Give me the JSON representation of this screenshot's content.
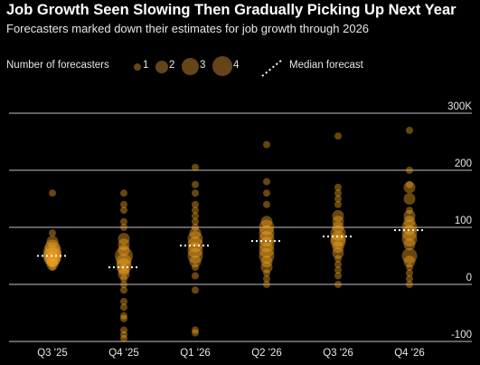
{
  "title": "Job Growth Seen Slowing Then Gradually Picking Up Next Year",
  "subtitle": "Forecasters marked down their estimates for job growth through 2026",
  "legend": {
    "forecasters_label": "Number of forecasters",
    "sizes": [
      "1",
      "2",
      "3",
      "4"
    ],
    "median_label": "Median forecast"
  },
  "colors": {
    "bubble": "#f5a623",
    "median": "#ffffff",
    "grid": "#ffffff",
    "background": "#000000"
  },
  "chart_data": {
    "type": "scatter",
    "title": "Job Growth Seen Slowing Then Gradually Picking Up Next Year",
    "categories": [
      "Q3 '25",
      "Q4 '25",
      "Q1 '26",
      "Q2 '26",
      "Q3 '26",
      "Q4 '26"
    ],
    "y_ticks": [
      {
        "value": 300,
        "label": "300K"
      },
      {
        "value": 200,
        "label": "200"
      },
      {
        "value": 100,
        "label": "100"
      },
      {
        "value": 0,
        "label": "0"
      },
      {
        "value": -100,
        "label": "-100"
      }
    ],
    "ylim": [
      -100,
      300
    ],
    "medians": [
      50,
      30,
      68,
      76,
      84,
      95
    ],
    "points": [
      [
        [
          160,
          1
        ],
        [
          90,
          1
        ],
        [
          75,
          2
        ],
        [
          65,
          3
        ],
        [
          58,
          4
        ],
        [
          52,
          4
        ],
        [
          48,
          4
        ],
        [
          44,
          3
        ],
        [
          40,
          2
        ],
        [
          35,
          2
        ],
        [
          30,
          1
        ]
      ],
      [
        [
          160,
          1
        ],
        [
          140,
          1
        ],
        [
          130,
          1
        ],
        [
          110,
          1
        ],
        [
          100,
          1
        ],
        [
          80,
          2
        ],
        [
          70,
          2
        ],
        [
          60,
          2
        ],
        [
          50,
          4
        ],
        [
          40,
          3
        ],
        [
          32,
          3
        ],
        [
          25,
          2
        ],
        [
          18,
          2
        ],
        [
          10,
          1
        ],
        [
          0,
          1
        ],
        [
          -10,
          1
        ],
        [
          -30,
          1
        ],
        [
          -40,
          1
        ],
        [
          -55,
          1
        ],
        [
          -60,
          1
        ],
        [
          -80,
          1
        ],
        [
          -88,
          1
        ],
        [
          -95,
          1
        ]
      ],
      [
        [
          205,
          1
        ],
        [
          175,
          1
        ],
        [
          160,
          1
        ],
        [
          140,
          1
        ],
        [
          130,
          1
        ],
        [
          120,
          1
        ],
        [
          110,
          1
        ],
        [
          100,
          1
        ],
        [
          90,
          2
        ],
        [
          80,
          3
        ],
        [
          70,
          3
        ],
        [
          60,
          3
        ],
        [
          50,
          3
        ],
        [
          40,
          2
        ],
        [
          30,
          1
        ],
        [
          15,
          1
        ],
        [
          -10,
          1
        ],
        [
          -80,
          1
        ],
        [
          -85,
          1
        ]
      ],
      [
        [
          245,
          1
        ],
        [
          180,
          1
        ],
        [
          160,
          1
        ],
        [
          140,
          1
        ],
        [
          110,
          2
        ],
        [
          100,
          3
        ],
        [
          90,
          3
        ],
        [
          80,
          3
        ],
        [
          70,
          3
        ],
        [
          60,
          3
        ],
        [
          50,
          3
        ],
        [
          40,
          2
        ],
        [
          30,
          2
        ],
        [
          20,
          1
        ],
        [
          10,
          1
        ],
        [
          0,
          1
        ]
      ],
      [
        [
          260,
          1
        ],
        [
          170,
          1
        ],
        [
          160,
          1
        ],
        [
          150,
          1
        ],
        [
          140,
          1
        ],
        [
          120,
          2
        ],
        [
          110,
          2
        ],
        [
          100,
          2
        ],
        [
          90,
          3
        ],
        [
          80,
          3
        ],
        [
          75,
          3
        ],
        [
          65,
          2
        ],
        [
          55,
          2
        ],
        [
          45,
          1
        ],
        [
          35,
          1
        ],
        [
          25,
          1
        ],
        [
          15,
          1
        ],
        [
          0,
          1
        ]
      ],
      [
        [
          270,
          1
        ],
        [
          200,
          1
        ],
        [
          175,
          1
        ],
        [
          170,
          2
        ],
        [
          150,
          2
        ],
        [
          130,
          1
        ],
        [
          120,
          2
        ],
        [
          110,
          2
        ],
        [
          100,
          3
        ],
        [
          90,
          3
        ],
        [
          80,
          3
        ],
        [
          70,
          2
        ],
        [
          50,
          3
        ],
        [
          40,
          2
        ],
        [
          30,
          1
        ],
        [
          20,
          1
        ],
        [
          10,
          1
        ],
        [
          0,
          1
        ]
      ]
    ]
  }
}
